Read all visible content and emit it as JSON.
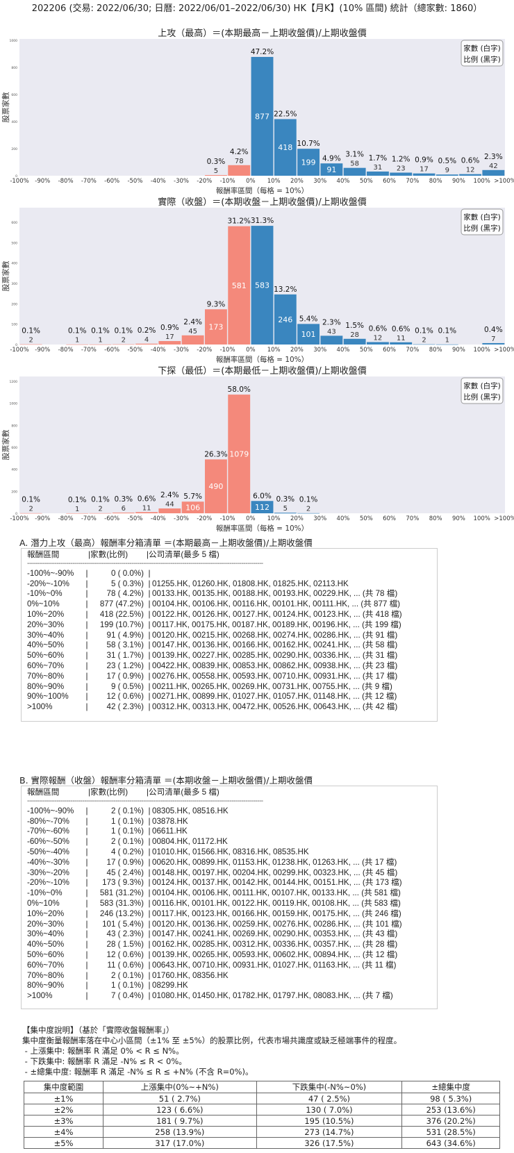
{
  "header": "202206 (交易: 2022/06/30; 日曆: 2022/06/01–2022/06/30) HK【月K】(10% 區間) 統計（總家數: 1860）",
  "colors": {
    "negative": "#F4897B",
    "positive": "#3A86BF",
    "plot_bg": "#EAEAF2"
  },
  "chart_data": [
    {
      "type": "bar",
      "title": "上攻（最高）＝(本期最高－上期收盤價)/上期收盤價",
      "xlabel": "報酬率區間（每格 = 10%）",
      "ylabel": "股票家數",
      "legend": [
        "家數 (白字)",
        "比例 (黑字)"
      ],
      "legend_position": "top-right",
      "grid": false,
      "ylim": [
        0,
        1010
      ],
      "yticks": [
        "0",
        "200",
        "400",
        "600",
        "800",
        "1000"
      ],
      "xticks": [
        "-100%",
        "-90%",
        "-80%",
        "-70%",
        "-60%",
        "-50%",
        "-40%",
        "-30%",
        "-20%",
        "-10%",
        "0%",
        "10%",
        "20%",
        "30%",
        "40%",
        "50%",
        "60%",
        "70%",
        "80%",
        "90%",
        "100%",
        ">100%"
      ],
      "categories": [
        "-100%~-90%",
        "-90%~-80%",
        "-80%~-70%",
        "-70%~-60%",
        "-60%~-50%",
        "-50%~-40%",
        "-40%~-30%",
        "-30%~-20%",
        "-20%~-10%",
        "-10%~0%",
        "0%~10%",
        "10%~20%",
        "20%~30%",
        "30%~40%",
        "40%~50%",
        "50%~60%",
        "60%~70%",
        "70%~80%",
        "80%~90%",
        "90%~100%",
        ">100%"
      ],
      "values": [
        0,
        0,
        0,
        0,
        0,
        0,
        0,
        0,
        5,
        78,
        877,
        418,
        199,
        91,
        58,
        31,
        23,
        17,
        9,
        12,
        42
      ],
      "pct_labels": [
        "",
        "",
        "",
        "",
        "",
        "",
        "",
        "",
        "0.3%",
        "4.2%",
        "47.2%",
        "22.5%",
        "10.7%",
        "4.9%",
        "3.1%",
        "1.7%",
        "1.2%",
        "0.9%",
        "0.5%",
        "0.6%",
        "2.3%"
      ]
    },
    {
      "type": "bar",
      "title": "實際（收盤）＝(本期收盤－上期收盤價)/上期收盤價",
      "xlabel": "報酬率區間（每格 = 10%）",
      "ylabel": "股票家數",
      "legend": [
        "家數 (白字)",
        "比例 (黑字)"
      ],
      "legend_position": "top-right",
      "grid": false,
      "ylim": [
        0,
        672
      ],
      "yticks": [
        "0",
        "100",
        "200",
        "300",
        "400",
        "500",
        "600"
      ],
      "xticks": [
        "-100%",
        "-90%",
        "-80%",
        "-70%",
        "-60%",
        "-50%",
        "-40%",
        "-30%",
        "-20%",
        "-10%",
        "0%",
        "10%",
        "20%",
        "30%",
        "40%",
        "50%",
        "60%",
        "70%",
        "80%",
        "90%",
        "100%",
        ">100%"
      ],
      "categories": [
        "-100%~-90%",
        "-90%~-80%",
        "-80%~-70%",
        "-70%~-60%",
        "-60%~-50%",
        "-50%~-40%",
        "-40%~-30%",
        "-30%~-20%",
        "-20%~-10%",
        "-10%~0%",
        "0%~10%",
        "10%~20%",
        "20%~30%",
        "30%~40%",
        "40%~50%",
        "50%~60%",
        "60%~70%",
        "70%~80%",
        "80%~90%",
        "90%~100%",
        ">100%"
      ],
      "values": [
        2,
        0,
        1,
        1,
        2,
        4,
        17,
        45,
        173,
        581,
        583,
        246,
        101,
        43,
        28,
        12,
        11,
        2,
        1,
        0,
        7
      ],
      "pct_labels": [
        "0.1%",
        "",
        "0.1%",
        "0.1%",
        "0.1%",
        "0.2%",
        "0.9%",
        "2.4%",
        "9.3%",
        "31.2%",
        "31.3%",
        "13.2%",
        "5.4%",
        "2.3%",
        "1.5%",
        "0.6%",
        "0.6%",
        "0.1%",
        "0.1%",
        "",
        "0.4%"
      ]
    },
    {
      "type": "bar",
      "title": "下探（最低）＝(本期最低－上期收盤價)/上期收盤價",
      "xlabel": "報酬率區間（每格 = 10%）",
      "ylabel": "股票家數",
      "legend": [
        "家數 (白字)",
        "比例 (黑字)"
      ],
      "legend_position": "top-right",
      "grid": false,
      "ylim": [
        0,
        1244
      ],
      "yticks": [
        "0",
        "200",
        "400",
        "600",
        "800",
        "1000",
        "1200"
      ],
      "xticks": [
        "-100%",
        "-90%",
        "-80%",
        "-70%",
        "-60%",
        "-50%",
        "-40%",
        "-30%",
        "-20%",
        "-10%",
        "0%",
        "10%",
        "20%",
        "30%",
        "40%",
        "50%",
        "60%",
        "70%",
        "80%",
        "90%",
        "100%",
        ">100%"
      ],
      "categories": [
        "-100%~-90%",
        "-90%~-80%",
        "-80%~-70%",
        "-70%~-60%",
        "-60%~-50%",
        "-50%~-40%",
        "-40%~-30%",
        "-30%~-20%",
        "-20%~-10%",
        "-10%~0%",
        "0%~10%",
        "10%~20%",
        "20%~30%",
        "30%~40%",
        "40%~50%",
        "50%~60%",
        "60%~70%",
        "70%~80%",
        "80%~90%",
        "90%~100%",
        ">100%"
      ],
      "values": [
        2,
        0,
        1,
        2,
        6,
        11,
        44,
        106,
        490,
        1079,
        112,
        5,
        2,
        0,
        0,
        0,
        0,
        0,
        0,
        0,
        0
      ],
      "pct_labels": [
        "0.1%",
        "",
        "0.1%",
        "0.1%",
        "0.3%",
        "0.6%",
        "2.4%",
        "5.7%",
        "26.3%",
        "58.0%",
        "6.0%",
        "0.3%",
        "0.1%",
        "",
        "",
        "",
        "",
        "",
        "",
        "",
        ""
      ]
    }
  ],
  "section_a": {
    "title": "A. 潛力上攻（最高）報酬率分箱清單 ＝(本期最高－上期收盤價)/上期收盤價",
    "header": {
      "range": "報酬區間",
      "count": "|家數(比例)",
      "list": "|公司清單(最多 5 檔)"
    },
    "divider": "------------------------------------------------------------------------------------------------------------------------",
    "rows": [
      {
        "range": "-100%~-90%",
        "count": "0 ( 0.0%)",
        "list": ""
      },
      {
        "range": "-20%~-10%",
        "count": "5 ( 0.3%)",
        "list": "01255.HK, 01260.HK, 01808.HK, 01825.HK, 02113.HK"
      },
      {
        "range": "-10%~0%",
        "count": "78 ( 4.2%)",
        "list": "00133.HK, 00135.HK, 00188.HK, 00193.HK, 00229.HK, ... (共 78 檔)"
      },
      {
        "range": "0%~10%",
        "count": "877 (47.2%)",
        "list": "00104.HK, 00106.HK, 00116.HK, 00101.HK, 00111.HK, ... (共 877 檔)"
      },
      {
        "range": "10%~20%",
        "count": "418 (22.5%)",
        "list": "00122.HK, 00126.HK, 00127.HK, 00124.HK, 00123.HK, ... (共 418 檔)"
      },
      {
        "range": "20%~30%",
        "count": "199 (10.7%)",
        "list": "00117.HK, 00175.HK, 00187.HK, 00189.HK, 00196.HK, ... (共 199 檔)"
      },
      {
        "range": "30%~40%",
        "count": "91 ( 4.9%)",
        "list": "00120.HK, 00215.HK, 00268.HK, 00274.HK, 00286.HK, ... (共 91 檔)"
      },
      {
        "range": "40%~50%",
        "count": "58 ( 3.1%)",
        "list": "00147.HK, 00136.HK, 00166.HK, 00162.HK, 00241.HK, ... (共 58 檔)"
      },
      {
        "range": "50%~60%",
        "count": "31 ( 1.7%)",
        "list": "00139.HK, 00227.HK, 00285.HK, 00290.HK, 00336.HK, ... (共 31 檔)"
      },
      {
        "range": "60%~70%",
        "count": "23 ( 1.2%)",
        "list": "00422.HK, 00839.HK, 00853.HK, 00862.HK, 00938.HK, ... (共 23 檔)"
      },
      {
        "range": "70%~80%",
        "count": "17 ( 0.9%)",
        "list": "00276.HK, 00558.HK, 00593.HK, 00710.HK, 00931.HK, ... (共 17 檔)"
      },
      {
        "range": "80%~90%",
        "count": "9 ( 0.5%)",
        "list": "00211.HK, 00265.HK, 00269.HK, 00731.HK, 00755.HK, ... (共 9 檔)"
      },
      {
        "range": "90%~100%",
        "count": "12 ( 0.6%)",
        "list": "00271.HK, 00899.HK, 01027.HK, 01057.HK, 01148.HK, ... (共 12 檔)"
      },
      {
        "range": ">100%",
        "count": "42 ( 2.3%)",
        "list": "00312.HK, 00313.HK, 00472.HK, 00526.HK, 00643.HK, ... (共 42 檔)"
      }
    ]
  },
  "section_b": {
    "title": "B. 實際報酬（收盤）報酬率分箱清單 ＝(本期收盤－上期收盤價)/上期收盤價",
    "header": {
      "range": "報酬區間",
      "count": "|家數(比例)",
      "list": "|公司清單(最多 5 檔)"
    },
    "divider": "------------------------------------------------------------------------------------------------------------------------",
    "rows": [
      {
        "range": "-100%~-90%",
        "count": "2 ( 0.1%)",
        "list": "08305.HK, 08516.HK"
      },
      {
        "range": "-80%~-70%",
        "count": "1 ( 0.1%)",
        "list": "03878.HK"
      },
      {
        "range": "-70%~-60%",
        "count": "1 ( 0.1%)",
        "list": "06611.HK"
      },
      {
        "range": "-60%~-50%",
        "count": "2 ( 0.1%)",
        "list": "00804.HK, 01172.HK"
      },
      {
        "range": "-50%~-40%",
        "count": "4 ( 0.2%)",
        "list": "01010.HK, 01566.HK, 08316.HK, 08535.HK"
      },
      {
        "range": "-40%~-30%",
        "count": "17 ( 0.9%)",
        "list": "00620.HK, 00899.HK, 01153.HK, 01238.HK, 01263.HK, ... (共 17 檔)"
      },
      {
        "range": "-30%~-20%",
        "count": "45 ( 2.4%)",
        "list": "00148.HK, 00197.HK, 00204.HK, 00299.HK, 00323.HK, ... (共 45 檔)"
      },
      {
        "range": "-20%~-10%",
        "count": "173 ( 9.3%)",
        "list": "00124.HK, 00137.HK, 00142.HK, 00144.HK, 00151.HK, ... (共 173 檔)"
      },
      {
        "range": "-10%~0%",
        "count": "581 (31.2%)",
        "list": "00104.HK, 00106.HK, 00111.HK, 00107.HK, 00133.HK, ... (共 581 檔)"
      },
      {
        "range": "0%~10%",
        "count": "583 (31.3%)",
        "list": "00116.HK, 00101.HK, 00122.HK, 00119.HK, 00108.HK, ... (共 583 檔)"
      },
      {
        "range": "10%~20%",
        "count": "246 (13.2%)",
        "list": "00117.HK, 00123.HK, 00166.HK, 00159.HK, 00175.HK, ... (共 246 檔)"
      },
      {
        "range": "20%~30%",
        "count": "101 ( 5.4%)",
        "list": "00120.HK, 00136.HK, 00259.HK, 00276.HK, 00286.HK, ... (共 101 檔)"
      },
      {
        "range": "30%~40%",
        "count": "43 ( 2.3%)",
        "list": "00147.HK, 00241.HK, 00269.HK, 00290.HK, 00353.HK, ... (共 43 檔)"
      },
      {
        "range": "40%~50%",
        "count": "28 ( 1.5%)",
        "list": "00162.HK, 00285.HK, 00312.HK, 00336.HK, 00357.HK, ... (共 28 檔)"
      },
      {
        "range": "50%~60%",
        "count": "12 ( 0.6%)",
        "list": "00139.HK, 00265.HK, 00593.HK, 00602.HK, 00894.HK, ... (共 12 檔)"
      },
      {
        "range": "60%~70%",
        "count": "11 ( 0.6%)",
        "list": "00643.HK, 00710.HK, 00931.HK, 01027.HK, 01163.HK, ... (共 11 檔)"
      },
      {
        "range": "70%~80%",
        "count": "2 ( 0.1%)",
        "list": "01760.HK, 08356.HK"
      },
      {
        "range": "80%~90%",
        "count": "1 ( 0.1%)",
        "list": "08299.HK"
      },
      {
        "range": ">100%",
        "count": "7 ( 0.4%)",
        "list": "01080.HK, 01450.HK, 01782.HK, 01797.HK, 08083.HK, ... (共 7 檔)"
      }
    ]
  },
  "concentration": {
    "lines": [
      "【集中度說明】（基於「實際收盤報酬率」）",
      "集中度衡量報酬率落在中心小區間（±1% 至 ±5%）的股票比例，代表市場共識度或缺乏極端事件的程度。",
      " - 上漲集中: 報酬率 R 滿足 0% < R ≤ N%。",
      " - 下跌集中: 報酬率 R 滿足 -N% ≤ R < 0%。",
      " - ±總集中度: 報酬率 R 滿足 -N% ≤ R ≤ +N% (不含 R=0%)。"
    ],
    "columns": [
      "集中度範圍",
      "上漲集中(0%~+N%)",
      "下跌集中(-N%~0%)",
      "±總集中度"
    ],
    "rows": [
      [
        "±1%",
        "51 ( 2.7%)",
        "47 ( 2.5%)",
        "98 ( 5.3%)"
      ],
      [
        "±2%",
        "123 ( 6.6%)",
        "130 ( 7.0%)",
        "253 (13.6%)"
      ],
      [
        "±3%",
        "181 ( 9.7%)",
        "195 (10.5%)",
        "376 (20.2%)"
      ],
      [
        "±4%",
        "258 (13.9%)",
        "273 (14.7%)",
        "531 (28.5%)"
      ],
      [
        "±5%",
        "317 (17.0%)",
        "326 (17.5%)",
        "643 (34.6%)"
      ]
    ]
  }
}
